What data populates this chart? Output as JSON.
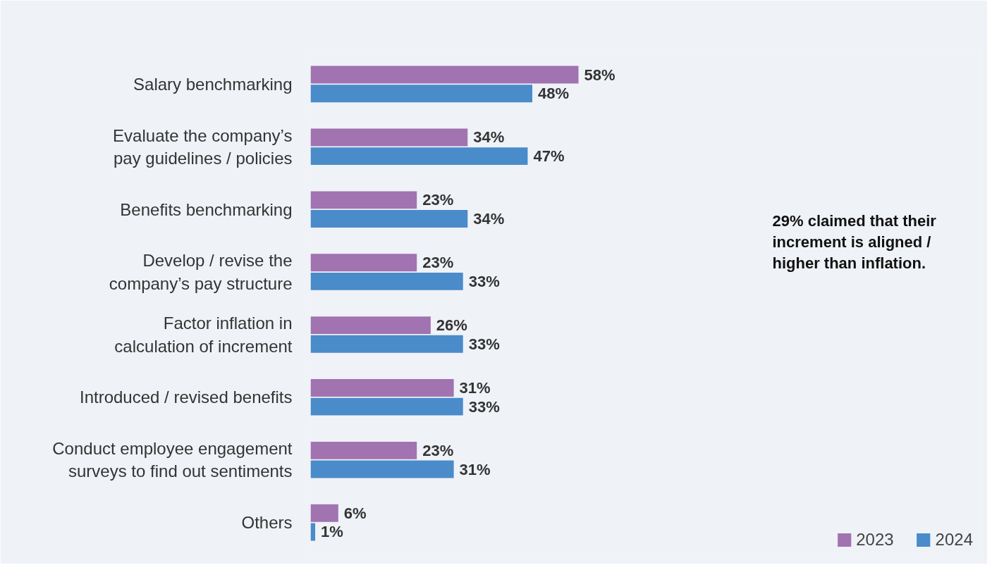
{
  "chart_data": {
    "type": "bar",
    "orientation": "horizontal",
    "categories": [
      "Salary benchmarking",
      "Evaluate the company’s\npay guidelines / policies",
      "Benefits benchmarking",
      "Develop / revise the\ncompany’s pay structure",
      "Factor inflation in\ncalculation of increment",
      "Introduced / revised benefits",
      "Conduct employee engagement\nsurveys to find out sentiments",
      "Others"
    ],
    "series": [
      {
        "name": "2023",
        "color": "#a173b0",
        "values": [
          58,
          34,
          23,
          23,
          26,
          31,
          23,
          6
        ],
        "value_labels": [
          "58%",
          "34%",
          "23%",
          "23%",
          "26%",
          "31%",
          "23%",
          "6%"
        ]
      },
      {
        "name": "2024",
        "color": "#4a8bca",
        "values": [
          48,
          47,
          34,
          33,
          33,
          33,
          31,
          1
        ],
        "value_labels": [
          "48%",
          "47%",
          "34%",
          "33%",
          "33%",
          "33%",
          "31%",
          "1%"
        ]
      }
    ],
    "annotations": [
      "29% claimed that their increment is aligned / higher than inflation."
    ],
    "legend": "bottom right",
    "grid": false
  }
}
